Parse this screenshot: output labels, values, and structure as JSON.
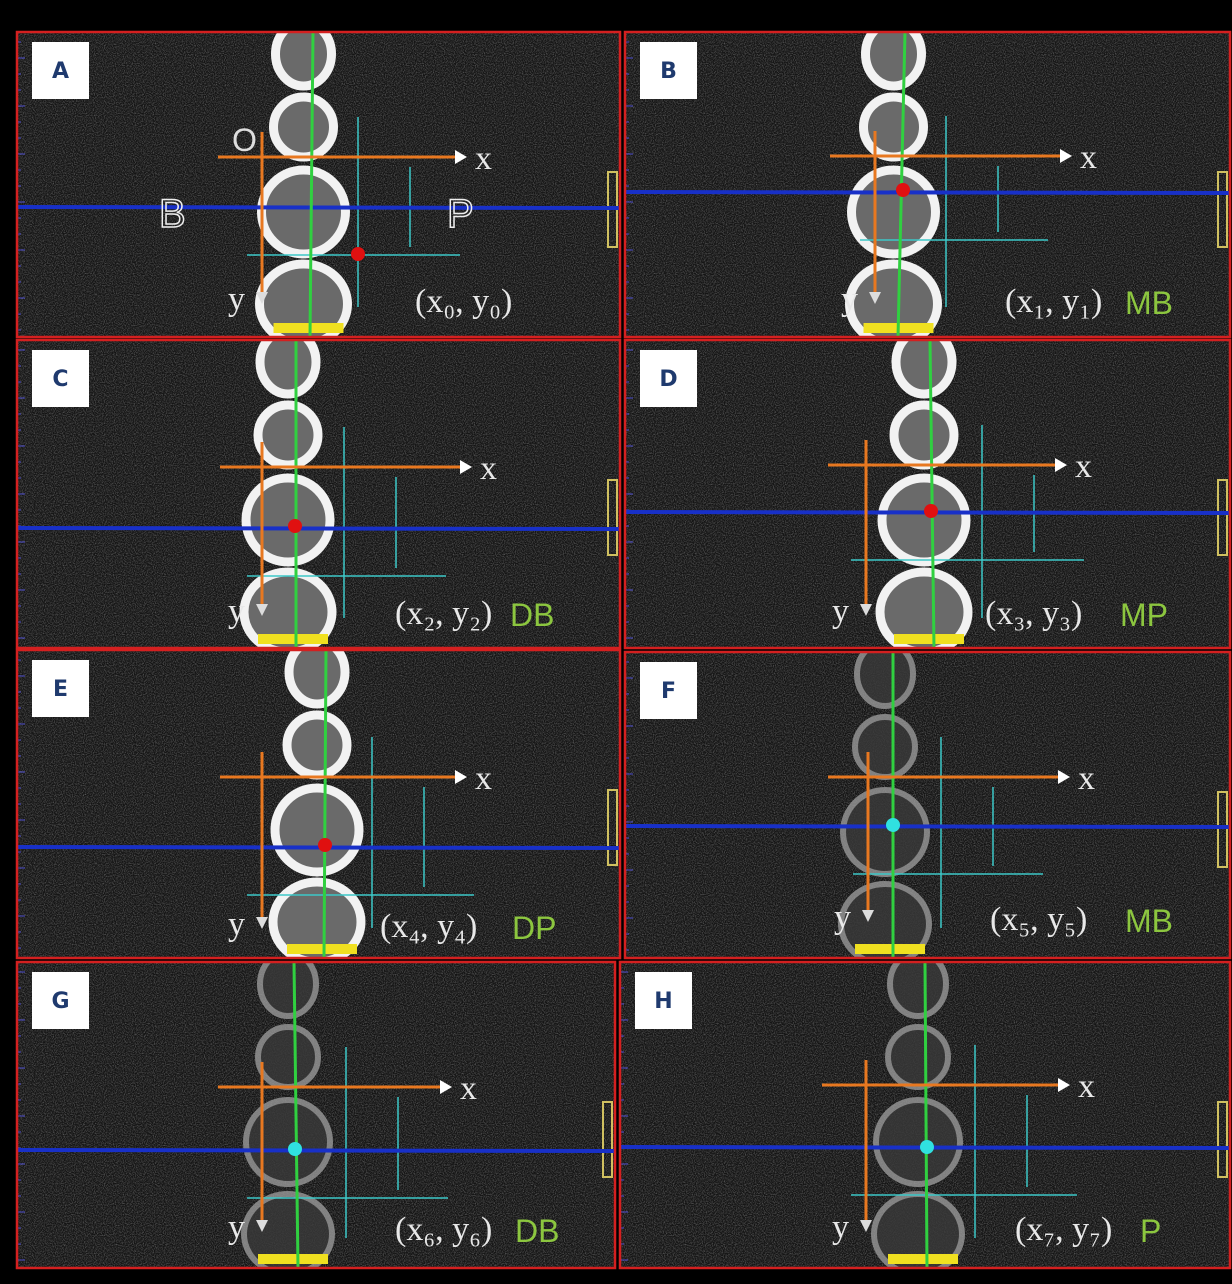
{
  "panels": [
    {
      "label": "A",
      "origin": "O",
      "axis_x": "x",
      "axis_y": "y",
      "side_left": "B",
      "side_right": "P",
      "coord": "(x₀, y₀)"
    },
    {
      "label": "B",
      "axis_x": "x",
      "axis_y": "y",
      "coord": "(x₁, y₁)",
      "root": "MB"
    },
    {
      "label": "C",
      "axis_x": "x",
      "axis_y": "y",
      "coord": "(x₂, y₂)",
      "root": "DB"
    },
    {
      "label": "D",
      "axis_x": "x",
      "axis_y": "y",
      "coord": "(x₃, y₃)",
      "root": "MP"
    },
    {
      "label": "E",
      "axis_x": "x",
      "axis_y": "y",
      "coord": "(x₄, y₄)",
      "root": "DP"
    },
    {
      "label": "F",
      "axis_x": "x",
      "axis_y": "y",
      "coord": "(x₅, y₅)",
      "root": "MB"
    },
    {
      "label": "G",
      "axis_x": "x",
      "axis_y": "y",
      "coord": "(x₆, y₆)",
      "root": "DB"
    },
    {
      "label": "H",
      "axis_x": "x",
      "axis_y": "y",
      "coord": "(x₇, y₇)",
      "root": "P"
    }
  ]
}
